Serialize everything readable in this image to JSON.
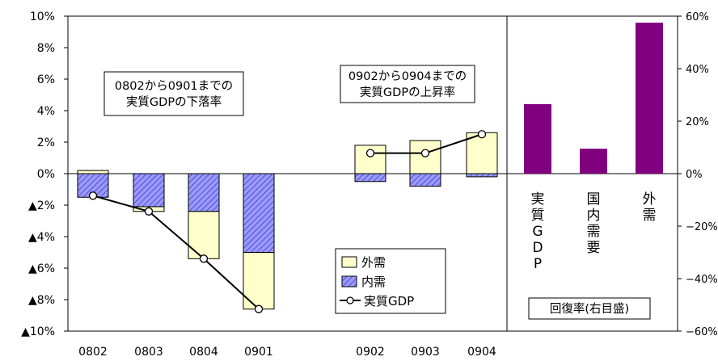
{
  "chart_data": {
    "type": "bar",
    "left_axis": {
      "ylim": [
        -10,
        10
      ],
      "ticks": [
        10,
        8,
        6,
        4,
        2,
        0,
        -2,
        -4,
        -6,
        -8,
        -10
      ],
      "tick_labels": [
        "10%",
        "8%",
        "6%",
        "4%",
        "2%",
        "0%",
        "▲2%",
        "▲4%",
        "▲6%",
        "▲8%",
        "▲10%"
      ]
    },
    "right_axis": {
      "ylim": [
        -60,
        60
      ],
      "ticks": [
        60,
        40,
        20,
        0,
        -20,
        -40,
        -60
      ],
      "tick_labels": [
        "60%",
        "40%",
        "20%",
        "0%",
        "−20%",
        "−40%",
        "−60%"
      ]
    },
    "categories": [
      "0802",
      "0803",
      "0804",
      "0901",
      "",
      "0902",
      "0903",
      "0904"
    ],
    "series": [
      {
        "name": "外需",
        "type": "stacked-bar",
        "color": "#ffffcc",
        "values": [
          0.2,
          -0.3,
          -3.0,
          -3.6,
          null,
          1.8,
          2.1,
          2.6
        ]
      },
      {
        "name": "内需",
        "type": "stacked-bar",
        "color": "#9999ff",
        "values": [
          -1.5,
          -2.1,
          -2.4,
          -5.0,
          null,
          -0.5,
          -0.8,
          -0.2
        ]
      },
      {
        "name": "実質GDP",
        "type": "line",
        "values": [
          -1.4,
          -2.4,
          -5.4,
          -8.6,
          null,
          1.3,
          1.3,
          2.5
        ]
      }
    ],
    "recovery": {
      "categories": [
        "実\n質\nG\nD\nP",
        "国\n内\n需\n要",
        "外\n需"
      ],
      "values": [
        26.5,
        9.5,
        57.5
      ],
      "color": "#800080",
      "axis": "right"
    },
    "annotations": [
      "0802から0901までの\n実質GDPの下落率",
      "0902から0904までの\n実質GDPの上昇率",
      "回復率(右目盛)"
    ],
    "legend_position": "bottom-center"
  }
}
